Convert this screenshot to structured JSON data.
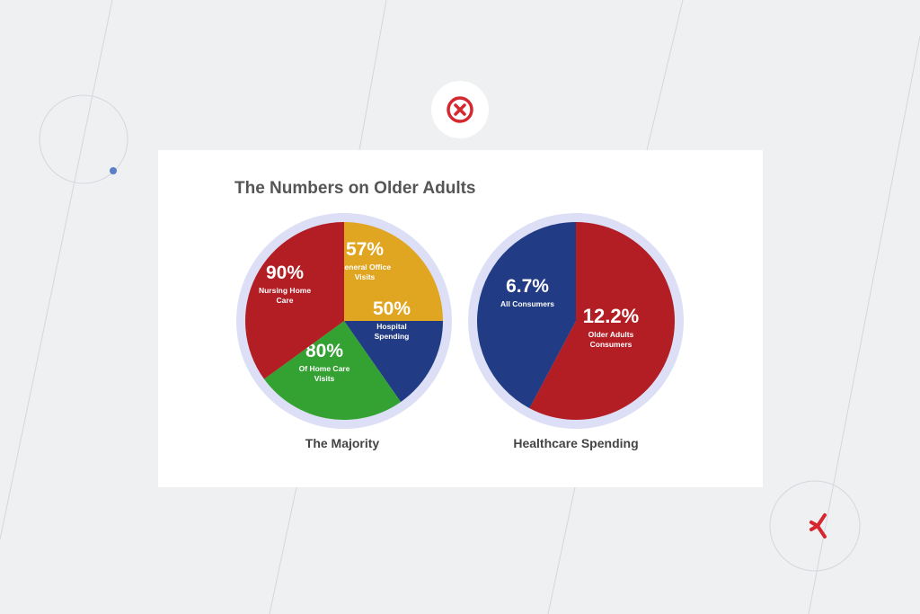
{
  "title": "The Numbers on Older Adults",
  "colors": {
    "background": "#eef0f2",
    "card": "#ffffff",
    "ring": "#dcdff5",
    "red": "#b31d24",
    "gold": "#e0a622",
    "navy": "#213b84",
    "green": "#34a233",
    "close_icon": "#d6272e",
    "accent_dot": "#5b7fc7"
  },
  "icons": {
    "close": "close-circle-icon",
    "asterisk": "asterisk-icon"
  },
  "chart_data": [
    {
      "type": "pie",
      "title": "The Majority",
      "slices": [
        {
          "value": "57%",
          "label": [
            "General Office",
            "Visits"
          ],
          "color": "#e0a622"
        },
        {
          "value": "50%",
          "label": [
            "Hospital",
            "Spending"
          ],
          "color": "#213b84"
        },
        {
          "value": "80%",
          "label": [
            "Of Home Care",
            "Visits"
          ],
          "color": "#34a233"
        },
        {
          "value": "90%",
          "label": [
            "Nursing Home",
            "Care"
          ],
          "color": "#b31d24"
        }
      ]
    },
    {
      "type": "pie",
      "title": "Healthcare Spending",
      "slices": [
        {
          "value": "12.2%",
          "label": [
            "Older Adults",
            "Consumers"
          ],
          "color": "#b31d24"
        },
        {
          "value": "6.7%",
          "label": [
            "All Consumers"
          ],
          "color": "#213b84"
        }
      ]
    }
  ]
}
